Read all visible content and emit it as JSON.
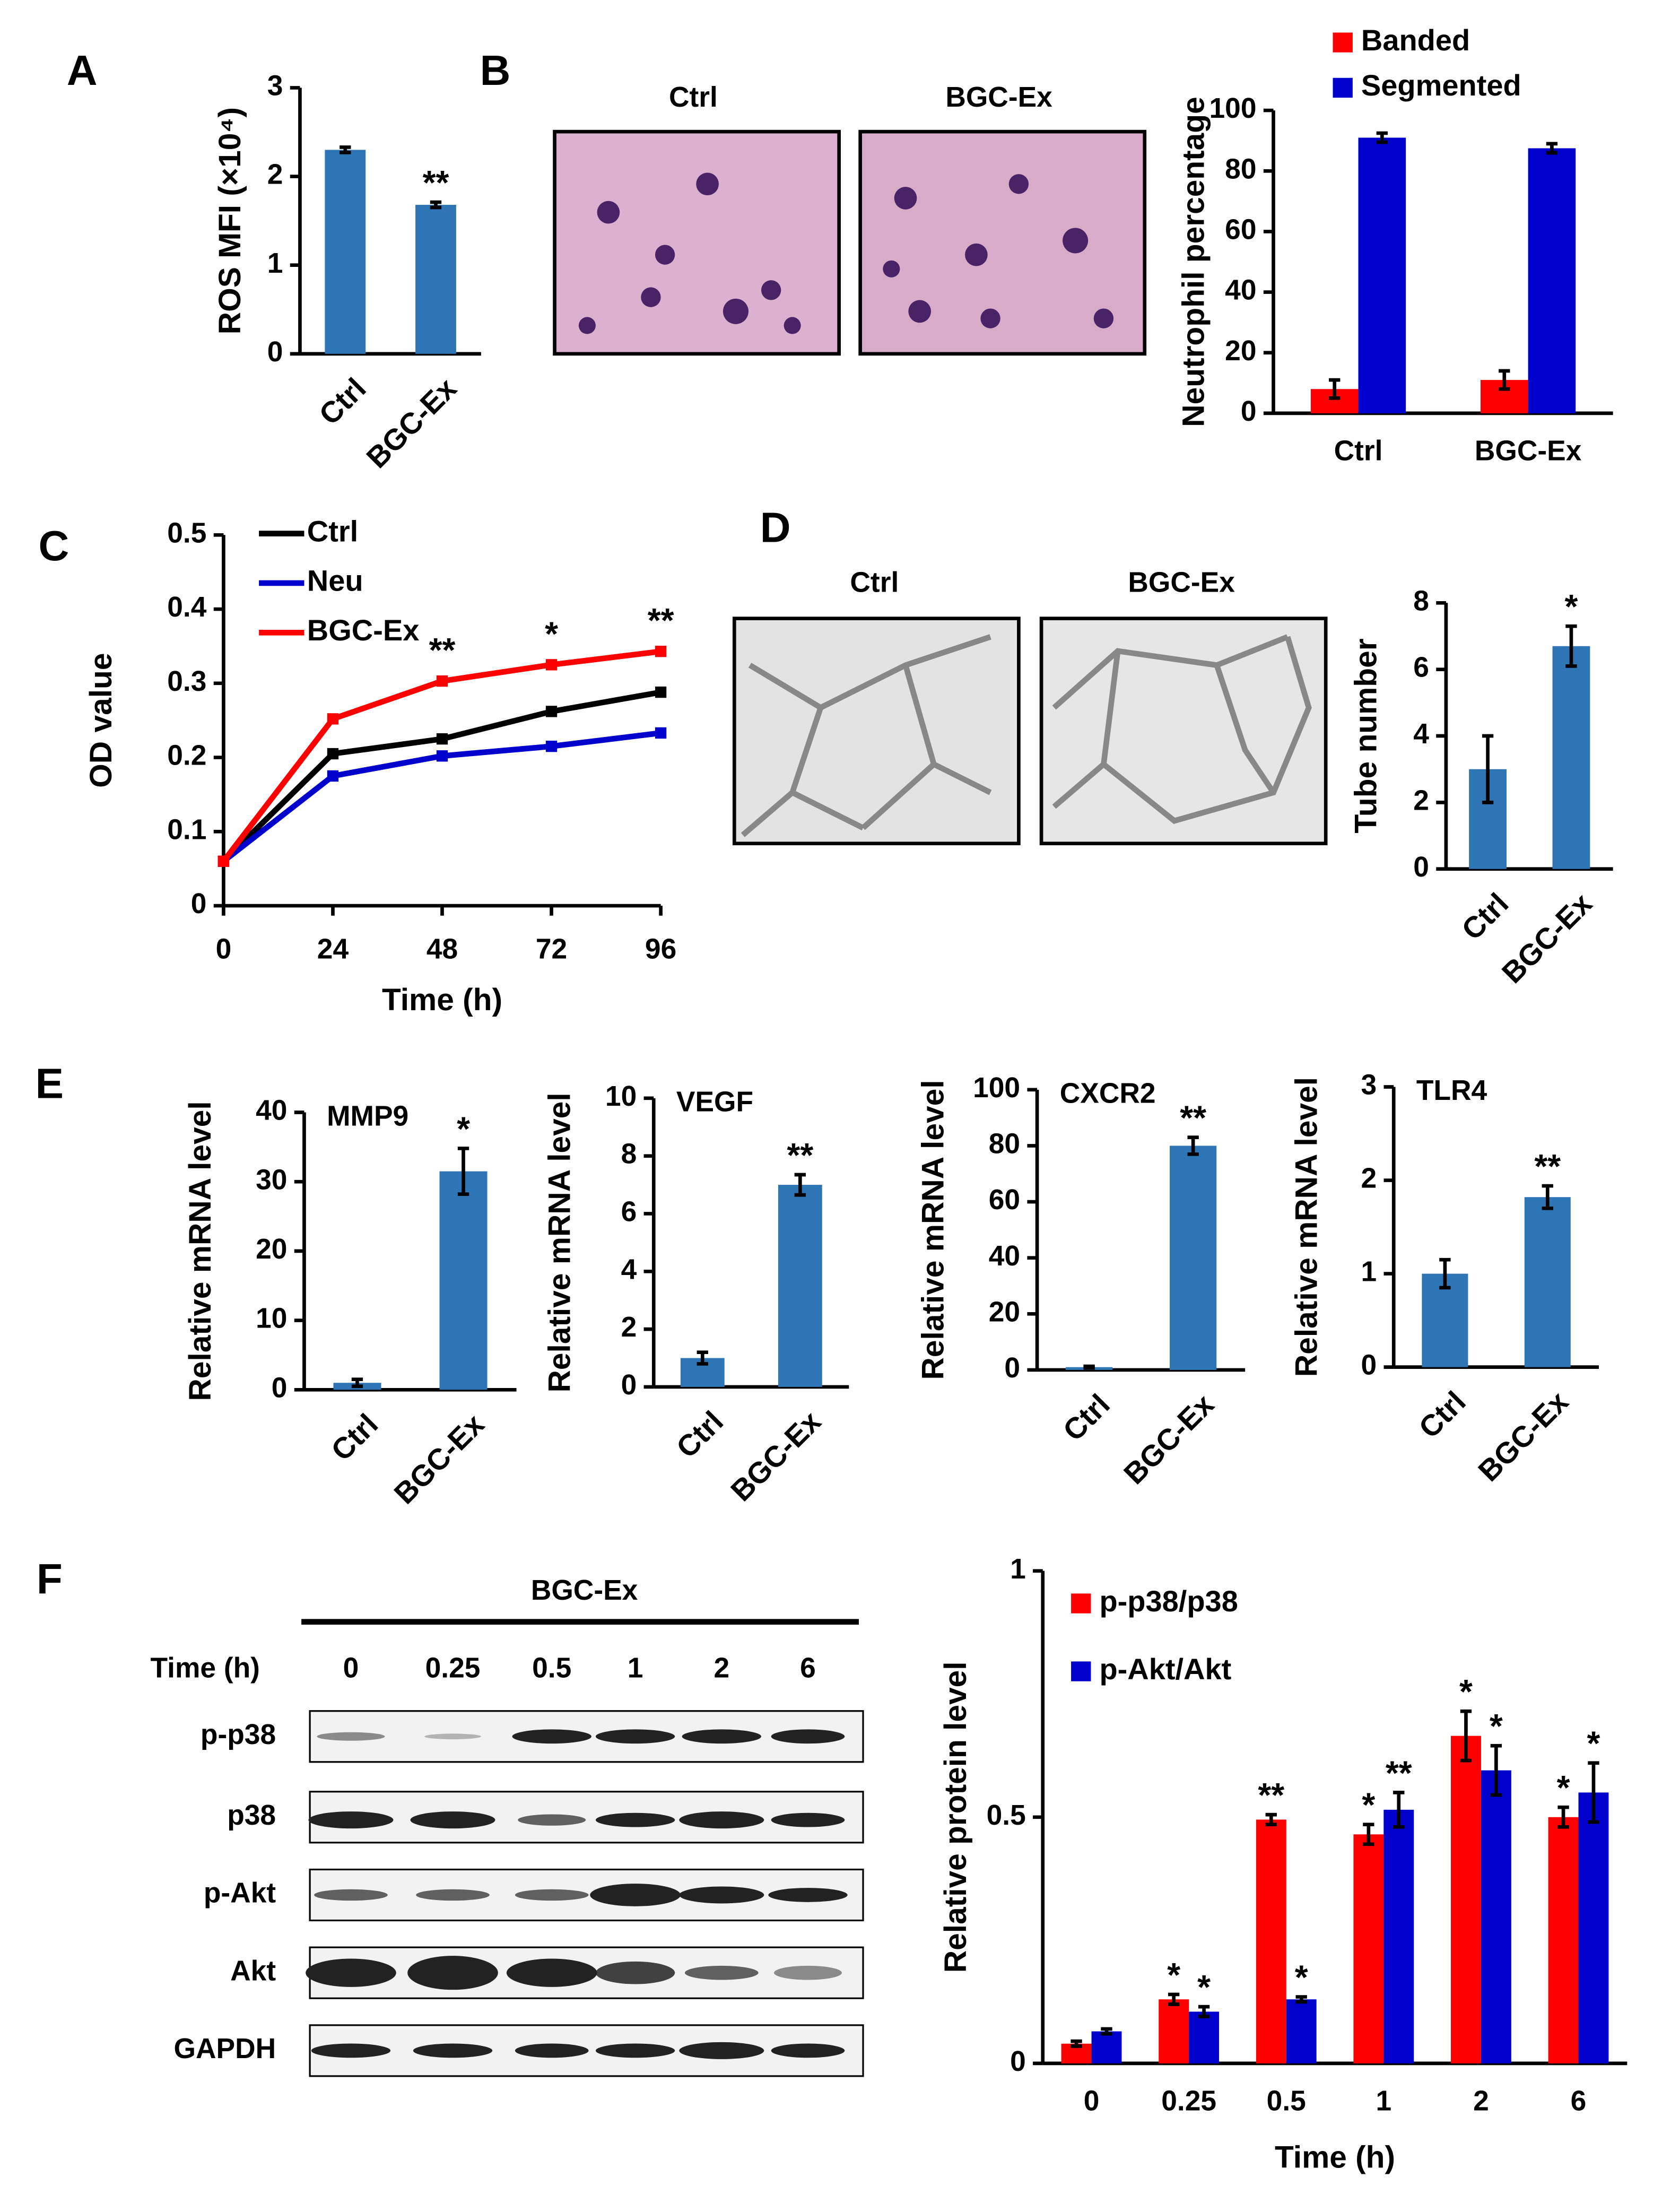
{
  "chart_data": [
    {
      "type": "bar",
      "ylabel": "ROS MFI (×10⁴)",
      "categories": [
        "Ctrl",
        "BGC-Ex"
      ],
      "values": [
        2.3,
        1.68
      ],
      "errors": [
        0.03,
        0.03
      ],
      "significance": [
        null,
        "**"
      ],
      "color": "#2e75b6",
      "ylim": [
        0,
        3
      ],
      "yticks": [
        0,
        1,
        2,
        3
      ]
    },
    {
      "type": "bar",
      "ylabel": "Neutrophil percentage",
      "categories": [
        "Ctrl",
        "BGC-Ex"
      ],
      "series": [
        {
          "name": "Banded",
          "color": "#ff0000",
          "values": [
            8,
            11
          ],
          "errors": [
            3,
            3
          ]
        },
        {
          "name": "Segmented",
          "color": "#0000cc",
          "values": [
            91,
            87.5
          ],
          "errors": [
            1.5,
            1.5
          ]
        }
      ],
      "ylim": [
        0,
        100
      ],
      "yticks": [
        0,
        20,
        40,
        60,
        80,
        100
      ]
    },
    {
      "type": "line",
      "xlabel": "Time (h)",
      "ylabel": "OD value",
      "x": [
        0,
        24,
        48,
        72,
        96
      ],
      "series": [
        {
          "name": "Ctrl",
          "color": "#000000",
          "values": [
            0.06,
            0.205,
            0.225,
            0.262,
            0.288
          ]
        },
        {
          "name": "Neu",
          "color": "#0000cc",
          "values": [
            0.06,
            0.175,
            0.202,
            0.215,
            0.233
          ]
        },
        {
          "name": "BGC-Ex",
          "color": "#ff0000",
          "values": [
            0.06,
            0.252,
            0.303,
            0.325,
            0.343
          ],
          "significance": [
            null,
            null,
            "**",
            "*",
            "**"
          ]
        }
      ],
      "xlim": [
        0,
        96
      ],
      "xticks": [
        0,
        24,
        48,
        72,
        96
      ],
      "ylim": [
        0,
        0.5
      ],
      "yticks": [
        0,
        0.1,
        0.2,
        0.3,
        0.4,
        0.5
      ]
    },
    {
      "type": "bar",
      "ylabel": "Tube number",
      "categories": [
        "Ctrl",
        "BGC-Ex"
      ],
      "values": [
        3,
        6.7
      ],
      "errors": [
        1.0,
        0.6
      ],
      "significance": [
        null,
        "*"
      ],
      "color": "#2e75b6",
      "ylim": [
        0,
        8
      ],
      "yticks": [
        0,
        2,
        4,
        6,
        8
      ]
    },
    {
      "type": "bar",
      "title": "MMP9",
      "ylabel": "Relative mRNA level",
      "categories": [
        "Ctrl",
        "BGC-Ex"
      ],
      "values": [
        1,
        31.5
      ],
      "errors": [
        0.5,
        3.3
      ],
      "significance": [
        null,
        "*"
      ],
      "color": "#2e75b6",
      "ylim": [
        0,
        40
      ],
      "yticks": [
        0,
        10,
        20,
        30,
        40
      ]
    },
    {
      "type": "bar",
      "title": "VEGF",
      "ylabel": "Relative mRNA level",
      "categories": [
        "Ctrl",
        "BGC-Ex"
      ],
      "values": [
        1,
        7
      ],
      "errors": [
        0.2,
        0.35
      ],
      "significance": [
        null,
        "**"
      ],
      "color": "#2e75b6",
      "ylim": [
        0,
        10
      ],
      "yticks": [
        0,
        2,
        4,
        6,
        8,
        10
      ]
    },
    {
      "type": "bar",
      "title": "CXCR2",
      "ylabel": "Relative mRNA level",
      "categories": [
        "Ctrl",
        "BGC-Ex"
      ],
      "values": [
        1,
        80
      ],
      "errors": [
        0.3,
        3
      ],
      "significance": [
        null,
        "**"
      ],
      "color": "#2e75b6",
      "ylim": [
        0,
        100
      ],
      "yticks": [
        0,
        20,
        40,
        60,
        80,
        100
      ]
    },
    {
      "type": "bar",
      "title": "TLR4",
      "ylabel": "Relative mRNA level",
      "categories": [
        "Ctrl",
        "BGC-Ex"
      ],
      "values": [
        1,
        1.82
      ],
      "errors": [
        0.15,
        0.12
      ],
      "significance": [
        null,
        "**"
      ],
      "color": "#2e75b6",
      "ylim": [
        0,
        3
      ],
      "yticks": [
        0,
        1,
        2,
        3
      ]
    },
    {
      "type": "bar",
      "xlabel": "Time (h)",
      "ylabel": "Relative protein level",
      "categories": [
        "0",
        "0.25",
        "0.5",
        "1",
        "2",
        "6"
      ],
      "series": [
        {
          "name": "p-p38/p38",
          "color": "#ff0000",
          "values": [
            0.04,
            0.13,
            0.495,
            0.465,
            0.665,
            0.5
          ],
          "errors": [
            0.005,
            0.01,
            0.01,
            0.02,
            0.05,
            0.02
          ],
          "significance": [
            null,
            "*",
            "**",
            "*",
            "*",
            "*"
          ]
        },
        {
          "name": "p-Akt/Akt",
          "color": "#0000cc",
          "values": [
            0.065,
            0.105,
            0.13,
            0.515,
            0.595,
            0.55
          ],
          "errors": [
            0.005,
            0.01,
            0.005,
            0.035,
            0.05,
            0.06
          ],
          "significance": [
            null,
            "*",
            "*",
            "**",
            "*",
            "*"
          ]
        }
      ],
      "ylim": [
        0,
        1
      ],
      "yticks": [
        0,
        0.5,
        1
      ]
    }
  ],
  "figure": {
    "panels": [
      "A",
      "B",
      "C",
      "D",
      "E",
      "F"
    ],
    "b_images": [
      "Ctrl",
      "BGC-Ex"
    ],
    "d_images": [
      "Ctrl",
      "BGC-Ex"
    ],
    "blot": {
      "treatment": "BGC-Ex",
      "time_label": "Time (h)",
      "lanes": [
        "0",
        "0.25",
        "0.5",
        "1",
        "2",
        "6"
      ],
      "rows": [
        "p-p38",
        "p38",
        "p-Akt",
        "Akt",
        "GAPDH"
      ]
    }
  }
}
